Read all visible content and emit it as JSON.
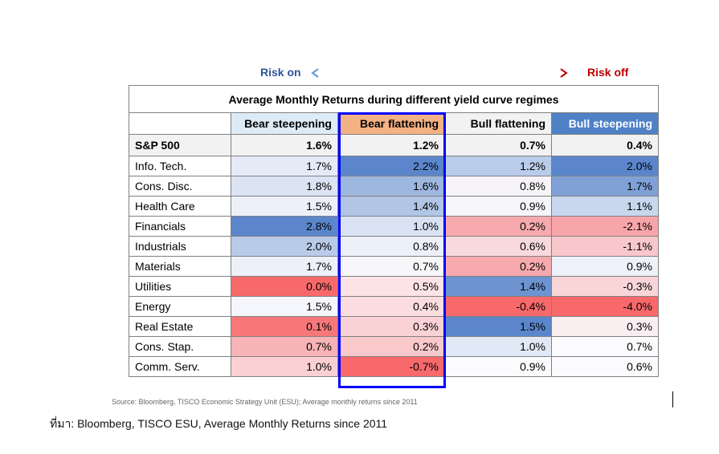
{
  "risk_on": "Risk on",
  "risk_off": "Risk off",
  "chart_data": {
    "type": "table",
    "title": "Average Monthly Returns during different yield curve regimes",
    "columns": [
      "Bear steepening",
      "Bear flattening",
      "Bull flattening",
      "Bull steepening"
    ],
    "header_colors": [
      "#ddebf7",
      "#f4b183",
      "#f2f2f2",
      "#4f81c7"
    ],
    "highlighted_column": "Bear flattening",
    "benchmark": {
      "label": "S&P 500",
      "values": [
        "1.6%",
        "1.2%",
        "0.7%",
        "0.4%"
      ]
    },
    "rows": [
      {
        "label": "Info. Tech.",
        "values": [
          "1.7%",
          "2.2%",
          "1.2%",
          "2.0%"
        ],
        "colors": [
          "#e6eaf7",
          "#5b86cc",
          "#b9cce9",
          "#5b86cc"
        ]
      },
      {
        "label": "Cons. Disc.",
        "values": [
          "1.8%",
          "1.6%",
          "0.8%",
          "1.7%"
        ],
        "colors": [
          "#dce4f3",
          "#9db7df",
          "#f7f4f8",
          "#7fa1d6"
        ]
      },
      {
        "label": "Health Care",
        "values": [
          "1.5%",
          "1.4%",
          "0.9%",
          "1.1%"
        ],
        "colors": [
          "#eef0f9",
          "#b1c5e6",
          "#f5f5fa",
          "#c9d7ee"
        ]
      },
      {
        "label": "Financials",
        "values": [
          "2.8%",
          "1.0%",
          "0.2%",
          "-2.1%"
        ],
        "colors": [
          "#5b86cc",
          "#d9e2f3",
          "#f6aaae",
          "#f8a5a9"
        ]
      },
      {
        "label": "Industrials",
        "values": [
          "2.0%",
          "0.8%",
          "0.6%",
          "-1.1%"
        ],
        "colors": [
          "#b8cbe9",
          "#ecf0f9",
          "#f8d9dd",
          "#f8c7cb"
        ]
      },
      {
        "label": "Materials",
        "values": [
          "1.7%",
          "0.7%",
          "0.2%",
          "0.9%"
        ],
        "colors": [
          "#eef0f9",
          "#f7f7fa",
          "#f6aaae",
          "#eef1f9"
        ]
      },
      {
        "label": "Utilities",
        "values": [
          "0.0%",
          "0.5%",
          "1.4%",
          "-0.3%"
        ],
        "colors": [
          "#f8696b",
          "#fbe3e6",
          "#6d93d1",
          "#f9d5d8"
        ]
      },
      {
        "label": "Energy",
        "values": [
          "1.5%",
          "0.4%",
          "-0.4%",
          "-4.0%"
        ],
        "colors": [
          "#f5f6fb",
          "#fbdde0",
          "#f8696b",
          "#f8696b"
        ]
      },
      {
        "label": "Real Estate",
        "values": [
          "0.1%",
          "0.3%",
          "1.5%",
          "0.3%"
        ],
        "colors": [
          "#f8787a",
          "#fad2d5",
          "#5b86cc",
          "#fbeef1"
        ]
      },
      {
        "label": "Cons. Stap.",
        "values": [
          "0.7%",
          "0.2%",
          "1.0%",
          "0.7%"
        ],
        "colors": [
          "#f7b3b6",
          "#f9c8cb",
          "#e2e9f6",
          "#fbfbfd"
        ]
      },
      {
        "label": "Comm. Serv.",
        "values": [
          "1.0%",
          "-0.7%",
          "0.9%",
          "0.6%"
        ],
        "colors": [
          "#fad0d3",
          "#f8696b",
          "#fbfbfd",
          "#fbfbfd"
        ]
      }
    ]
  },
  "source": "Source: Bloomberg, TISCO Economic Strategy Unit (ESU); Average monthly returns since 2011",
  "note": "ที่มา: Bloomberg, TISCO ESU, Average Monthly Returns since 2011"
}
